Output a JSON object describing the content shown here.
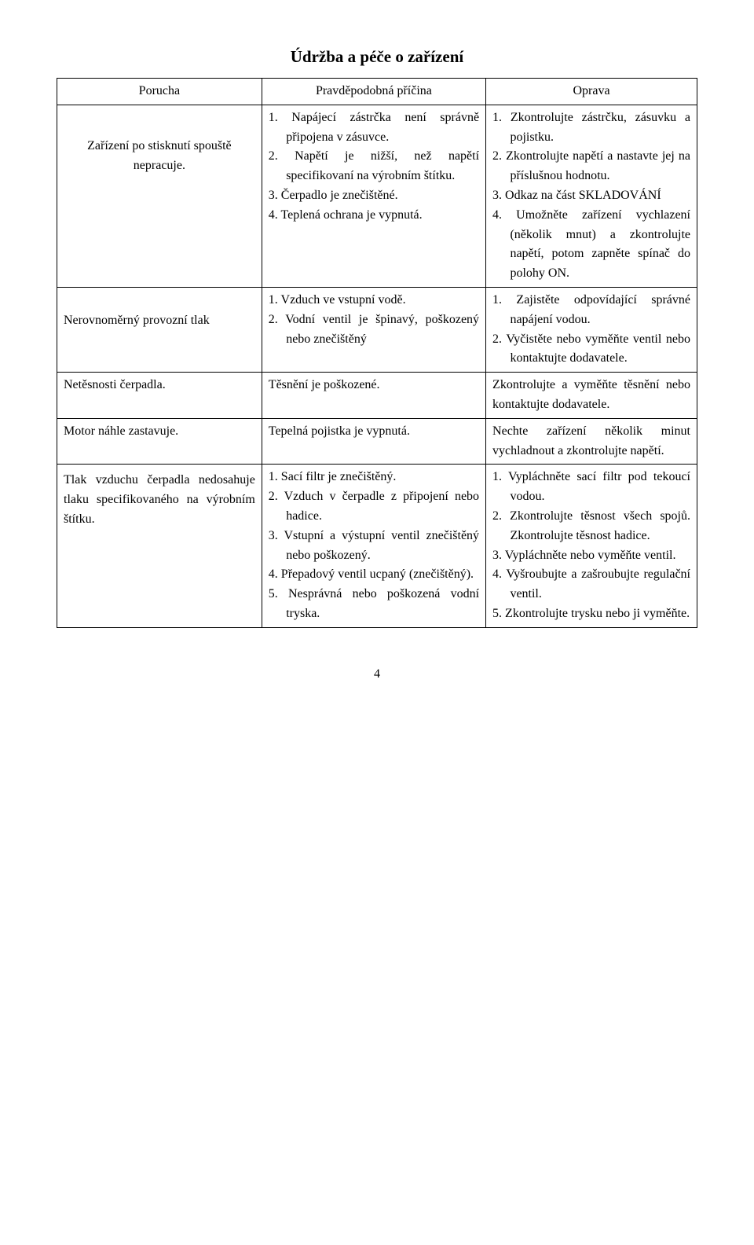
{
  "title": "Údržba a péče o zařízení",
  "headers": {
    "c1": "Porucha",
    "c2": "Pravděpodobná příčina",
    "c3": "Oprava"
  },
  "rows": [
    {
      "c1": "Zařízení po stisknutí spouště nepracuje.",
      "c2": [
        "1. Napájecí zástrčka není správně připojena v zásuvce.",
        "2. Napětí je nižší, než napětí specifikovaní na výrobním štítku.",
        "3. Čerpadlo je znečištěné.",
        "4. Teplená ochrana je vypnutá."
      ],
      "c3": [
        "1. Zkontrolujte zástrčku, zásuvku a pojistku.",
        "2. Zkontrolujte napětí a nastavte jej na příslušnou hodnotu.",
        "3. Odkaz na část SKLADOVÁNÍ",
        "4. Umožněte zařízení vychlazení (několik mnut) a zkontrolujte napětí, potom zapněte spínač do polohy ON."
      ]
    },
    {
      "c1": "Nerovnoměrný provozní tlak",
      "c2": [
        "1. Vzduch ve vstupní vodě.",
        "2. Vodní ventil je špinavý, poškozený nebo znečištěný"
      ],
      "c3": [
        "1. Zajistěte odpovídající správné napájení vodou.",
        "2. Vyčistěte nebo vyměňte ventil nebo kontaktujte dodavatele."
      ]
    },
    {
      "c1": "Netěsnosti čerpadla.",
      "c2_plain": "Těsnění je poškozené.",
      "c3_plain": "Zkontrolujte a vyměňte těsnění nebo kontaktujte dodavatele."
    },
    {
      "c1": "Motor náhle zastavuje.",
      "c2_plain": "Tepelná pojistka je vypnutá.",
      "c3_plain": "Nechte zařízení několik minut vychladnout a zkontrolujte napětí."
    },
    {
      "c1": "Tlak vzduchu čerpadla nedosahuje tlaku specifikovaného na výrobním štítku.",
      "c2": [
        "1. Sací filtr je znečištěný.",
        "2. Vzduch v čerpadle z připojení nebo hadice.",
        "3. Vstupní a výstupní ventil znečištěný nebo poškozený.",
        "4. Přepadový ventil ucpaný (znečištěný).",
        "5. Nesprávná nebo poškozená vodní tryska."
      ],
      "c3": [
        "1. Vypláchněte sací filtr pod tekoucí vodou.",
        "2. Zkontrolujte těsnost všech spojů. Zkontrolujte těsnost hadice.",
        "3. Vypláchněte nebo vyměňte ventil.",
        "4. Vyšroubujte a zašroubujte regulační ventil.",
        "5. Zkontrolujte trysku nebo ji vyměňte."
      ]
    }
  ],
  "pageNumber": "4",
  "colors": {
    "text": "#000000",
    "bg": "#ffffff",
    "border": "#000000"
  },
  "typography": {
    "fontFamily": "Times New Roman",
    "baseFontSize": 16,
    "titleFontSize": 21,
    "lineHeight": 1.55
  }
}
